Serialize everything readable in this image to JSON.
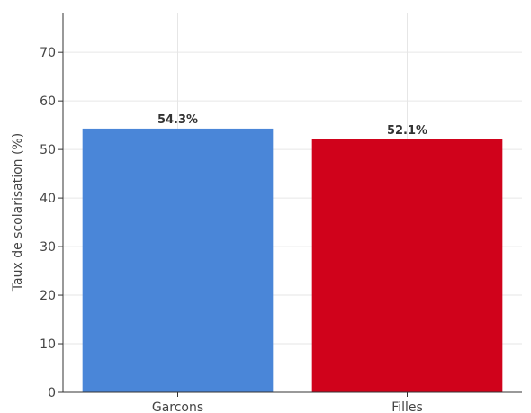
{
  "chart_data": {
    "type": "bar",
    "categories": [
      "Garcons",
      "Filles"
    ],
    "values": [
      54.3,
      52.1
    ],
    "data_labels": [
      "54.3%",
      "52.1%"
    ],
    "colors": [
      "#4a86d8",
      "#d0021b"
    ],
    "title": "",
    "xlabel": "",
    "ylabel": "Taux de scolarisation (%)",
    "ylim": [
      0,
      78
    ],
    "yticks": [
      0,
      10,
      20,
      30,
      40,
      50,
      60,
      70
    ],
    "grid": true,
    "legend": "none"
  }
}
